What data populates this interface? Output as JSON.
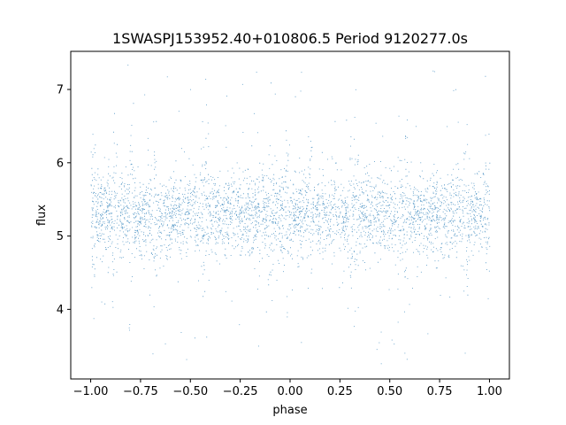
{
  "chart_data": {
    "type": "scatter",
    "title": "1SWASPJ153952.40+010806.5 Period 9120277.0s",
    "xlabel": "phase",
    "ylabel": "flux",
    "xlim": [
      -1.1,
      1.1
    ],
    "ylim": [
      3.05,
      7.52
    ],
    "xticks": [
      -1.0,
      -0.75,
      -0.5,
      -0.25,
      0.0,
      0.25,
      0.5,
      0.75,
      1.0
    ],
    "xtick_labels": [
      "−1.00",
      "−0.75",
      "−0.50",
      "−0.25",
      "0.00",
      "0.25",
      "0.50",
      "0.75",
      "1.00"
    ],
    "yticks": [
      4,
      5,
      6,
      7
    ],
    "ytick_labels": [
      "4",
      "5",
      "6",
      "7"
    ],
    "grid": false,
    "series": [
      {
        "color": "#1f77b4",
        "marker": "dot",
        "phase_range": [
          -1.0,
          1.0
        ],
        "flux_center": 5.3,
        "flux_core_band": [
          4.85,
          5.75
        ],
        "flux_extremes": [
          3.25,
          7.35
        ]
      }
    ]
  }
}
